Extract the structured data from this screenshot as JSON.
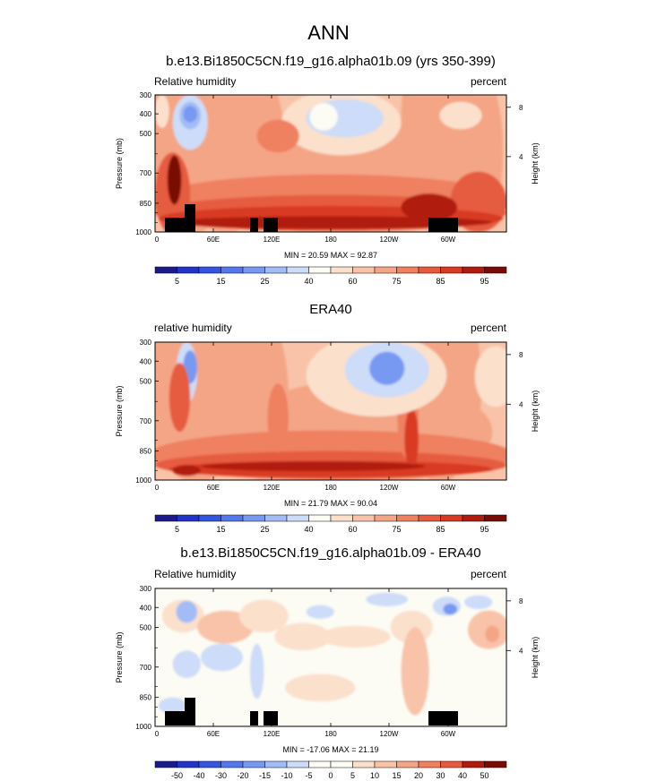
{
  "figure": {
    "title": "ANN"
  },
  "chart_data": [
    {
      "type": "heatmap",
      "title": "b.e13.Bi1850C5CN.f19_g16.alpha01b.09 (yrs 350-399)",
      "left_label": "Relative humidity",
      "right_label": "percent",
      "ylabel": "Pressure (mb)",
      "right_axis_label": "Height (km)",
      "x_ticks": [
        "0",
        "60E",
        "120E",
        "180",
        "120W",
        "60W"
      ],
      "y_ticks": [
        "300",
        "400",
        "500",
        "700",
        "850",
        "1000"
      ],
      "right_ticks": [
        "8",
        "4"
      ],
      "stats": "MIN = 20.59  MAX = 92.87",
      "colorbar_labels": [
        "5",
        "15",
        "25",
        "40",
        "60",
        "75",
        "85",
        "95"
      ],
      "has_topography": true
    },
    {
      "type": "heatmap",
      "title": "ERA40",
      "left_label": "relative humidity",
      "right_label": "percent",
      "ylabel": "Pressure (mb)",
      "right_axis_label": "Height (km)",
      "x_ticks": [
        "0",
        "60E",
        "120E",
        "180",
        "120W",
        "60W"
      ],
      "y_ticks": [
        "300",
        "400",
        "500",
        "700",
        "850",
        "1000"
      ],
      "right_ticks": [
        "8",
        "4"
      ],
      "stats": "MIN = 21.79  MAX = 90.04",
      "colorbar_labels": [
        "5",
        "15",
        "25",
        "40",
        "60",
        "75",
        "85",
        "95"
      ],
      "has_topography": false
    },
    {
      "type": "heatmap",
      "title": "b.e13.Bi1850C5CN.f19_g16.alpha01b.09 - ERA40",
      "left_label": "Relative humidity",
      "right_label": "percent",
      "ylabel": "Pressure (mb)",
      "right_axis_label": "Height (km)",
      "x_ticks": [
        "0",
        "60E",
        "120E",
        "180",
        "120W",
        "60W"
      ],
      "y_ticks": [
        "300",
        "400",
        "500",
        "700",
        "850",
        "1000"
      ],
      "right_ticks": [
        "8",
        "4"
      ],
      "stats": "MIN = -17.06  MAX = 21.19",
      "colorbar_labels": [
        "-50",
        "-40",
        "-30",
        "-20",
        "-15",
        "-10",
        "-5",
        "0",
        "5",
        "10",
        "15",
        "20",
        "30",
        "40",
        "50"
      ],
      "has_topography": true
    }
  ],
  "colors": {
    "abs_palette": [
      "#1a1a8c",
      "#2233c8",
      "#3355e0",
      "#5577ee",
      "#7799f2",
      "#a3bcf5",
      "#cddcf8",
      "#fdfcf4",
      "#fbe0cc",
      "#f8c3a8",
      "#f4a585",
      "#ef8060",
      "#e65b3f",
      "#d83b23",
      "#b01b10",
      "#7a0a05"
    ],
    "diff_palette": [
      "#1a1a8c",
      "#2233c8",
      "#3355e0",
      "#5577ee",
      "#7799f2",
      "#a3bcf5",
      "#cddcf8",
      "#fdfcf4",
      "#fdfcf4",
      "#fbe0cc",
      "#f8c3a8",
      "#f4a585",
      "#ef8060",
      "#e65b3f",
      "#b01b10",
      "#7a0a05"
    ],
    "topography": "#000000"
  }
}
